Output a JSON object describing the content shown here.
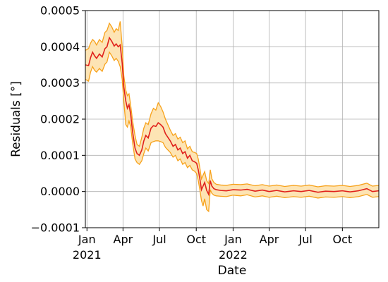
{
  "chart_data": {
    "type": "line",
    "xlabel": "Date",
    "ylabel": "Residuals [°]",
    "x_range": [
      "2020-12-28",
      "2022-12-31"
    ],
    "ylim": [
      -0.0001,
      0.0005
    ],
    "grid": true,
    "y_ticks": [
      {
        "value": -0.0001,
        "label": "−0.0001"
      },
      {
        "value": 0.0,
        "label": "0.0000"
      },
      {
        "value": 0.0001,
        "label": "0.0001"
      },
      {
        "value": 0.0002,
        "label": "0.0002"
      },
      {
        "value": 0.0003,
        "label": "0.0003"
      },
      {
        "value": 0.0004,
        "label": "0.0004"
      },
      {
        "value": 0.0005,
        "label": "0.0005"
      }
    ],
    "x_ticks": [
      {
        "date": "2021-01-01",
        "label": "Jan",
        "sublabel": "2021"
      },
      {
        "date": "2021-04-01",
        "label": "Apr",
        "sublabel": ""
      },
      {
        "date": "2021-07-01",
        "label": "Jul",
        "sublabel": ""
      },
      {
        "date": "2021-10-01",
        "label": "Oct",
        "sublabel": ""
      },
      {
        "date": "2022-01-01",
        "label": "Jan",
        "sublabel": "2022"
      },
      {
        "date": "2022-04-01",
        "label": "Apr",
        "sublabel": ""
      },
      {
        "date": "2022-07-01",
        "label": "Jul",
        "sublabel": ""
      },
      {
        "date": "2022-10-01",
        "label": "Oct",
        "sublabel": ""
      }
    ],
    "series": [
      {
        "role": "mean",
        "color": "#e0201b",
        "points": [
          [
            "2020-12-28",
            0.00035
          ],
          [
            "2021-01-05",
            0.000348
          ],
          [
            "2021-01-10",
            0.00037
          ],
          [
            "2021-01-15",
            0.000385
          ],
          [
            "2021-01-20",
            0.000375
          ],
          [
            "2021-01-25",
            0.000368
          ],
          [
            "2021-02-01",
            0.00038
          ],
          [
            "2021-02-08",
            0.000372
          ],
          [
            "2021-02-15",
            0.000395
          ],
          [
            "2021-02-20",
            0.0004
          ],
          [
            "2021-02-26",
            0.000425
          ],
          [
            "2021-03-04",
            0.000415
          ],
          [
            "2021-03-10",
            0.000402
          ],
          [
            "2021-03-15",
            0.000408
          ],
          [
            "2021-03-20",
            0.0004
          ],
          [
            "2021-03-25",
            0.000405
          ],
          [
            "2021-03-30",
            0.000355
          ],
          [
            "2021-04-03",
            0.00029
          ],
          [
            "2021-04-08",
            0.00025
          ],
          [
            "2021-04-12",
            0.00023
          ],
          [
            "2021-04-16",
            0.00024
          ],
          [
            "2021-04-20",
            0.000215
          ],
          [
            "2021-04-25",
            0.000165
          ],
          [
            "2021-05-01",
            0.00012
          ],
          [
            "2021-05-06",
            0.000105
          ],
          [
            "2021-05-12",
            0.0001
          ],
          [
            "2021-05-18",
            0.000115
          ],
          [
            "2021-05-23",
            0.00014
          ],
          [
            "2021-05-28",
            0.000155
          ],
          [
            "2021-06-03",
            0.000148
          ],
          [
            "2021-06-10",
            0.000175
          ],
          [
            "2021-06-16",
            0.000182
          ],
          [
            "2021-06-22",
            0.00018
          ],
          [
            "2021-06-28",
            0.00019
          ],
          [
            "2021-07-04",
            0.000185
          ],
          [
            "2021-07-10",
            0.000178
          ],
          [
            "2021-07-16",
            0.00016
          ],
          [
            "2021-07-22",
            0.00015
          ],
          [
            "2021-07-28",
            0.00014
          ],
          [
            "2021-08-04",
            0.000125
          ],
          [
            "2021-08-10",
            0.00013
          ],
          [
            "2021-08-16",
            0.000115
          ],
          [
            "2021-08-22",
            0.00012
          ],
          [
            "2021-08-28",
            0.000105
          ],
          [
            "2021-09-03",
            0.00011
          ],
          [
            "2021-09-09",
            9.2e-05
          ],
          [
            "2021-09-15",
            0.0001
          ],
          [
            "2021-09-21",
            8.5e-05
          ],
          [
            "2021-09-27",
            8.2e-05
          ],
          [
            "2021-10-02",
            7.8e-05
          ],
          [
            "2021-10-06",
            6e-05
          ],
          [
            "2021-10-10",
            3.5e-05
          ],
          [
            "2021-10-14",
            5e-06
          ],
          [
            "2021-10-18",
            1.5e-05
          ],
          [
            "2021-10-22",
            2.5e-05
          ],
          [
            "2021-10-27",
            3e-06
          ],
          [
            "2021-11-01",
            -8e-06
          ],
          [
            "2021-11-05",
            3e-05
          ],
          [
            "2021-11-09",
            1.5e-05
          ],
          [
            "2021-11-14",
            8e-06
          ],
          [
            "2021-11-20",
            5e-06
          ],
          [
            "2021-12-01",
            3e-06
          ],
          [
            "2021-12-15",
            2e-06
          ],
          [
            "2022-01-01",
            5e-06
          ],
          [
            "2022-01-20",
            4e-06
          ],
          [
            "2022-02-05",
            6e-06
          ],
          [
            "2022-02-25",
            1e-06
          ],
          [
            "2022-03-15",
            4e-06
          ],
          [
            "2022-04-01",
            0.0
          ],
          [
            "2022-04-20",
            3e-06
          ],
          [
            "2022-05-10",
            -1e-06
          ],
          [
            "2022-06-01",
            2e-06
          ],
          [
            "2022-06-20",
            0.0
          ],
          [
            "2022-07-10",
            3e-06
          ],
          [
            "2022-08-01",
            -2e-06
          ],
          [
            "2022-08-20",
            1e-06
          ],
          [
            "2022-09-10",
            0.0
          ],
          [
            "2022-10-01",
            2e-06
          ],
          [
            "2022-10-20",
            -1e-06
          ],
          [
            "2022-11-10",
            2e-06
          ],
          [
            "2022-12-01",
            8e-06
          ],
          [
            "2022-12-15",
            0.0
          ],
          [
            "2022-12-31",
            2e-06
          ]
        ]
      },
      {
        "role": "band",
        "color": "#f7a21b",
        "fill": "#fde4b4",
        "upper": [
          [
            "2020-12-28",
            0.00039
          ],
          [
            "2021-01-05",
            0.000395
          ],
          [
            "2021-01-10",
            0.00041
          ],
          [
            "2021-01-15",
            0.00042
          ],
          [
            "2021-01-20",
            0.000415
          ],
          [
            "2021-01-25",
            0.000405
          ],
          [
            "2021-02-01",
            0.00042
          ],
          [
            "2021-02-08",
            0.000412
          ],
          [
            "2021-02-15",
            0.00044
          ],
          [
            "2021-02-20",
            0.000445
          ],
          [
            "2021-02-26",
            0.000465
          ],
          [
            "2021-03-04",
            0.000455
          ],
          [
            "2021-03-10",
            0.00044
          ],
          [
            "2021-03-15",
            0.00045
          ],
          [
            "2021-03-20",
            0.000445
          ],
          [
            "2021-03-25",
            0.00047
          ],
          [
            "2021-03-30",
            0.0004
          ],
          [
            "2021-04-03",
            0.00032
          ],
          [
            "2021-04-08",
            0.00028
          ],
          [
            "2021-04-12",
            0.000265
          ],
          [
            "2021-04-16",
            0.00027
          ],
          [
            "2021-04-20",
            0.00024
          ],
          [
            "2021-04-25",
            0.000195
          ],
          [
            "2021-05-01",
            0.000155
          ],
          [
            "2021-05-06",
            0.00013
          ],
          [
            "2021-05-12",
            0.000125
          ],
          [
            "2021-05-18",
            0.00015
          ],
          [
            "2021-05-23",
            0.000175
          ],
          [
            "2021-05-28",
            0.00019
          ],
          [
            "2021-06-03",
            0.000185
          ],
          [
            "2021-06-10",
            0.000215
          ],
          [
            "2021-06-16",
            0.00023
          ],
          [
            "2021-06-22",
            0.000225
          ],
          [
            "2021-06-28",
            0.000245
          ],
          [
            "2021-07-04",
            0.000235
          ],
          [
            "2021-07-10",
            0.00022
          ],
          [
            "2021-07-16",
            0.0002
          ],
          [
            "2021-07-22",
            0.000185
          ],
          [
            "2021-07-28",
            0.00017
          ],
          [
            "2021-08-04",
            0.000155
          ],
          [
            "2021-08-10",
            0.00016
          ],
          [
            "2021-08-16",
            0.000145
          ],
          [
            "2021-08-22",
            0.00015
          ],
          [
            "2021-08-28",
            0.000135
          ],
          [
            "2021-09-03",
            0.00014
          ],
          [
            "2021-09-09",
            0.000118
          ],
          [
            "2021-09-15",
            0.000125
          ],
          [
            "2021-09-21",
            0.00011
          ],
          [
            "2021-09-27",
            0.000108
          ],
          [
            "2021-10-02",
            0.000105
          ],
          [
            "2021-10-06",
            9e-05
          ],
          [
            "2021-10-10",
            6.5e-05
          ],
          [
            "2021-10-14",
            3.5e-05
          ],
          [
            "2021-10-18",
            4.5e-05
          ],
          [
            "2021-10-22",
            5.5e-05
          ],
          [
            "2021-10-27",
            3e-05
          ],
          [
            "2021-11-01",
            2.2e-05
          ],
          [
            "2021-11-05",
            6e-05
          ],
          [
            "2021-11-09",
            3.5e-05
          ],
          [
            "2021-11-14",
            2.5e-05
          ],
          [
            "2021-11-20",
            2e-05
          ],
          [
            "2021-12-01",
            1.8e-05
          ],
          [
            "2021-12-15",
            1.7e-05
          ],
          [
            "2022-01-01",
            2e-05
          ],
          [
            "2022-01-20",
            1.9e-05
          ],
          [
            "2022-02-05",
            2.1e-05
          ],
          [
            "2022-02-25",
            1.6e-05
          ],
          [
            "2022-03-15",
            1.9e-05
          ],
          [
            "2022-04-01",
            1.5e-05
          ],
          [
            "2022-04-20",
            1.8e-05
          ],
          [
            "2022-05-10",
            1.4e-05
          ],
          [
            "2022-06-01",
            1.7e-05
          ],
          [
            "2022-06-20",
            1.5e-05
          ],
          [
            "2022-07-10",
            1.8e-05
          ],
          [
            "2022-08-01",
            1.3e-05
          ],
          [
            "2022-08-20",
            1.6e-05
          ],
          [
            "2022-09-10",
            1.5e-05
          ],
          [
            "2022-10-01",
            1.7e-05
          ],
          [
            "2022-10-20",
            1.4e-05
          ],
          [
            "2022-11-10",
            1.7e-05
          ],
          [
            "2022-12-01",
            2.3e-05
          ],
          [
            "2022-12-15",
            1.5e-05
          ],
          [
            "2022-12-31",
            1.7e-05
          ]
        ],
        "lower": [
          [
            "2020-12-28",
            0.00031
          ],
          [
            "2021-01-05",
            0.000305
          ],
          [
            "2021-01-10",
            0.00033
          ],
          [
            "2021-01-15",
            0.000345
          ],
          [
            "2021-01-20",
            0.000335
          ],
          [
            "2021-01-25",
            0.00033
          ],
          [
            "2021-02-01",
            0.00034
          ],
          [
            "2021-02-08",
            0.000332
          ],
          [
            "2021-02-15",
            0.000352
          ],
          [
            "2021-02-20",
            0.000358
          ],
          [
            "2021-02-26",
            0.000385
          ],
          [
            "2021-03-04",
            0.000375
          ],
          [
            "2021-03-10",
            0.000362
          ],
          [
            "2021-03-15",
            0.000368
          ],
          [
            "2021-03-20",
            0.00036
          ],
          [
            "2021-03-25",
            0.000345
          ],
          [
            "2021-03-30",
            0.00031
          ],
          [
            "2021-04-03",
            0.00025
          ],
          [
            "2021-04-08",
            0.000185
          ],
          [
            "2021-04-12",
            0.000178
          ],
          [
            "2021-04-16",
            0.000195
          ],
          [
            "2021-04-20",
            0.00018
          ],
          [
            "2021-04-25",
            0.000135
          ],
          [
            "2021-05-01",
            9e-05
          ],
          [
            "2021-05-06",
            8e-05
          ],
          [
            "2021-05-12",
            7.5e-05
          ],
          [
            "2021-05-18",
            8.5e-05
          ],
          [
            "2021-05-23",
            0.000105
          ],
          [
            "2021-05-28",
            0.00012
          ],
          [
            "2021-06-03",
            0.000112
          ],
          [
            "2021-06-10",
            0.000135
          ],
          [
            "2021-06-16",
            0.000138
          ],
          [
            "2021-06-22",
            0.00014
          ],
          [
            "2021-06-28",
            0.00014
          ],
          [
            "2021-07-04",
            0.000138
          ],
          [
            "2021-07-10",
            0.000135
          ],
          [
            "2021-07-16",
            0.000122
          ],
          [
            "2021-07-22",
            0.000115
          ],
          [
            "2021-07-28",
            0.000108
          ],
          [
            "2021-08-04",
            9.5e-05
          ],
          [
            "2021-08-10",
            0.0001
          ],
          [
            "2021-08-16",
            8.5e-05
          ],
          [
            "2021-08-22",
            9e-05
          ],
          [
            "2021-08-28",
            7.5e-05
          ],
          [
            "2021-09-03",
            8e-05
          ],
          [
            "2021-09-09",
            6.6e-05
          ],
          [
            "2021-09-15",
            7.2e-05
          ],
          [
            "2021-09-21",
            6e-05
          ],
          [
            "2021-09-27",
            5.6e-05
          ],
          [
            "2021-10-02",
            5e-05
          ],
          [
            "2021-10-06",
            3e-05
          ],
          [
            "2021-10-10",
            5e-06
          ],
          [
            "2021-10-14",
            -2.5e-05
          ],
          [
            "2021-10-18",
            -4e-05
          ],
          [
            "2021-10-22",
            -2e-05
          ],
          [
            "2021-10-27",
            -5e-05
          ],
          [
            "2021-11-01",
            -5.5e-05
          ],
          [
            "2021-11-05",
            5e-06
          ],
          [
            "2021-11-09",
            -5e-06
          ],
          [
            "2021-11-14",
            -1e-05
          ],
          [
            "2021-11-20",
            -1.2e-05
          ],
          [
            "2021-12-01",
            -1.3e-05
          ],
          [
            "2021-12-15",
            -1.4e-05
          ],
          [
            "2022-01-01",
            -1e-05
          ],
          [
            "2022-01-20",
            -1.2e-05
          ],
          [
            "2022-02-05",
            -9e-06
          ],
          [
            "2022-02-25",
            -1.5e-05
          ],
          [
            "2022-03-15",
            -1.2e-05
          ],
          [
            "2022-04-01",
            -1.6e-05
          ],
          [
            "2022-04-20",
            -1.3e-05
          ],
          [
            "2022-05-10",
            -1.7e-05
          ],
          [
            "2022-06-01",
            -1.4e-05
          ],
          [
            "2022-06-20",
            -1.6e-05
          ],
          [
            "2022-07-10",
            -1.3e-05
          ],
          [
            "2022-08-01",
            -1.8e-05
          ],
          [
            "2022-08-20",
            -1.5e-05
          ],
          [
            "2022-09-10",
            -1.6e-05
          ],
          [
            "2022-10-01",
            -1.4e-05
          ],
          [
            "2022-10-20",
            -1.7e-05
          ],
          [
            "2022-11-10",
            -1.4e-05
          ],
          [
            "2022-12-01",
            -8e-06
          ],
          [
            "2022-12-15",
            -1.6e-05
          ],
          [
            "2022-12-31",
            -1.4e-05
          ]
        ]
      }
    ]
  }
}
